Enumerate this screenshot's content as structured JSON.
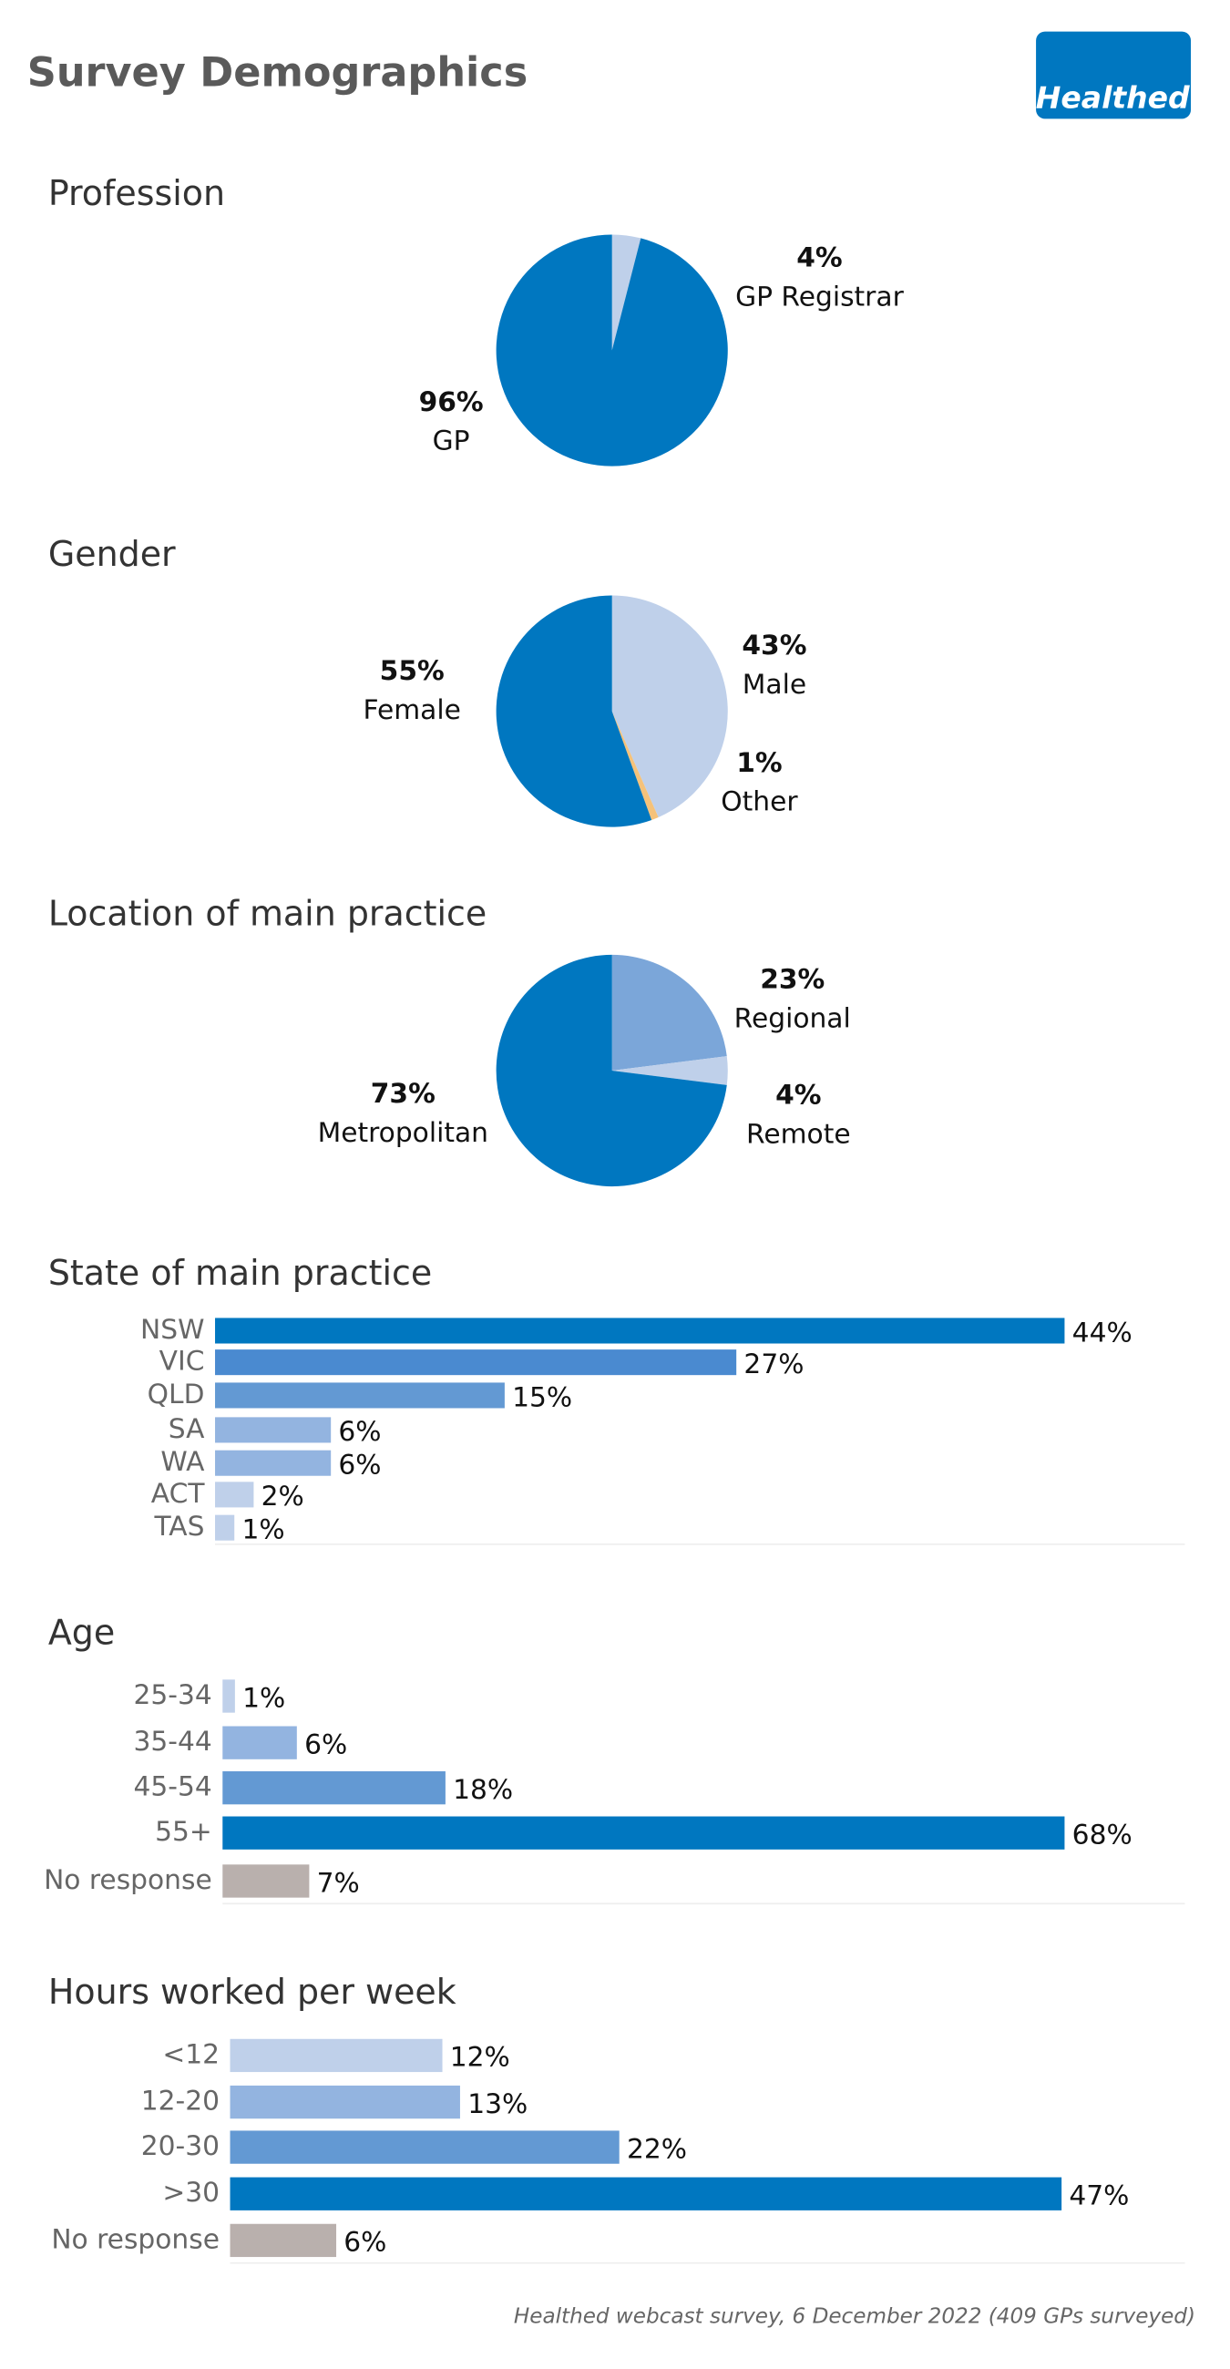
{
  "title": "Survey Demographics",
  "logo": "Healthed",
  "footnote": "Healthed webcast survey, 6 December 2022 (409 GPs surveyed)",
  "chart_data": [
    {
      "type": "pie",
      "title": "Profession",
      "categories": [
        "GP Registrar",
        "GP"
      ],
      "values": [
        4,
        96
      ],
      "value_labels": [
        "4%",
        "96%"
      ],
      "colors": [
        "#bfd0ea",
        "#0077c0"
      ]
    },
    {
      "type": "pie",
      "title": "Gender",
      "categories": [
        "Male",
        "Other",
        "Female"
      ],
      "values": [
        43,
        1,
        55
      ],
      "value_labels": [
        "43%",
        "1%",
        "55%"
      ],
      "colors": [
        "#bfd0ea",
        "#f5c27a",
        "#0077c0"
      ]
    },
    {
      "type": "pie",
      "title": "Location of main practice",
      "categories": [
        "Regional",
        "Remote",
        "Metropolitan"
      ],
      "values": [
        23,
        4,
        73
      ],
      "value_labels": [
        "23%",
        "4%",
        "73%"
      ],
      "colors": [
        "#7ba6d9",
        "#bfd0ea",
        "#0077c0"
      ]
    },
    {
      "type": "hbar",
      "title": "State of main practice",
      "categories": [
        "NSW",
        "VIC",
        "QLD",
        "SA",
        "WA",
        "ACT",
        "TAS"
      ],
      "values": [
        44,
        27,
        15,
        6,
        6,
        2,
        1
      ],
      "value_labels": [
        "44%",
        "27%",
        "15%",
        "6%",
        "6%",
        "2%",
        "1%"
      ],
      "colors": [
        "#0077c0",
        "#4a8ad0",
        "#6399d3",
        "#93b4e0",
        "#93b4e0",
        "#bfd0ea",
        "#bfd0ea"
      ]
    },
    {
      "type": "hbar",
      "title": "Age",
      "categories": [
        "25-34",
        "35-44",
        "45-54",
        "55+",
        "No response"
      ],
      "values": [
        1,
        6,
        18,
        68,
        7
      ],
      "value_labels": [
        "1%",
        "6%",
        "18%",
        "68%",
        "7%"
      ],
      "colors": [
        "#bfd0ea",
        "#93b4e0",
        "#6399d3",
        "#0077c0",
        "#b9b0ad"
      ]
    },
    {
      "type": "hbar",
      "title": "Hours worked per week",
      "categories": [
        "<12",
        "12-20",
        "20-30",
        ">30",
        "No response"
      ],
      "values": [
        12,
        13,
        22,
        47,
        6
      ],
      "value_labels": [
        "12%",
        "13%",
        "22%",
        "47%",
        "6%"
      ],
      "colors": [
        "#bfd0ea",
        "#93b4e0",
        "#6399d3",
        "#0077c0",
        "#b9b0ad"
      ]
    }
  ]
}
